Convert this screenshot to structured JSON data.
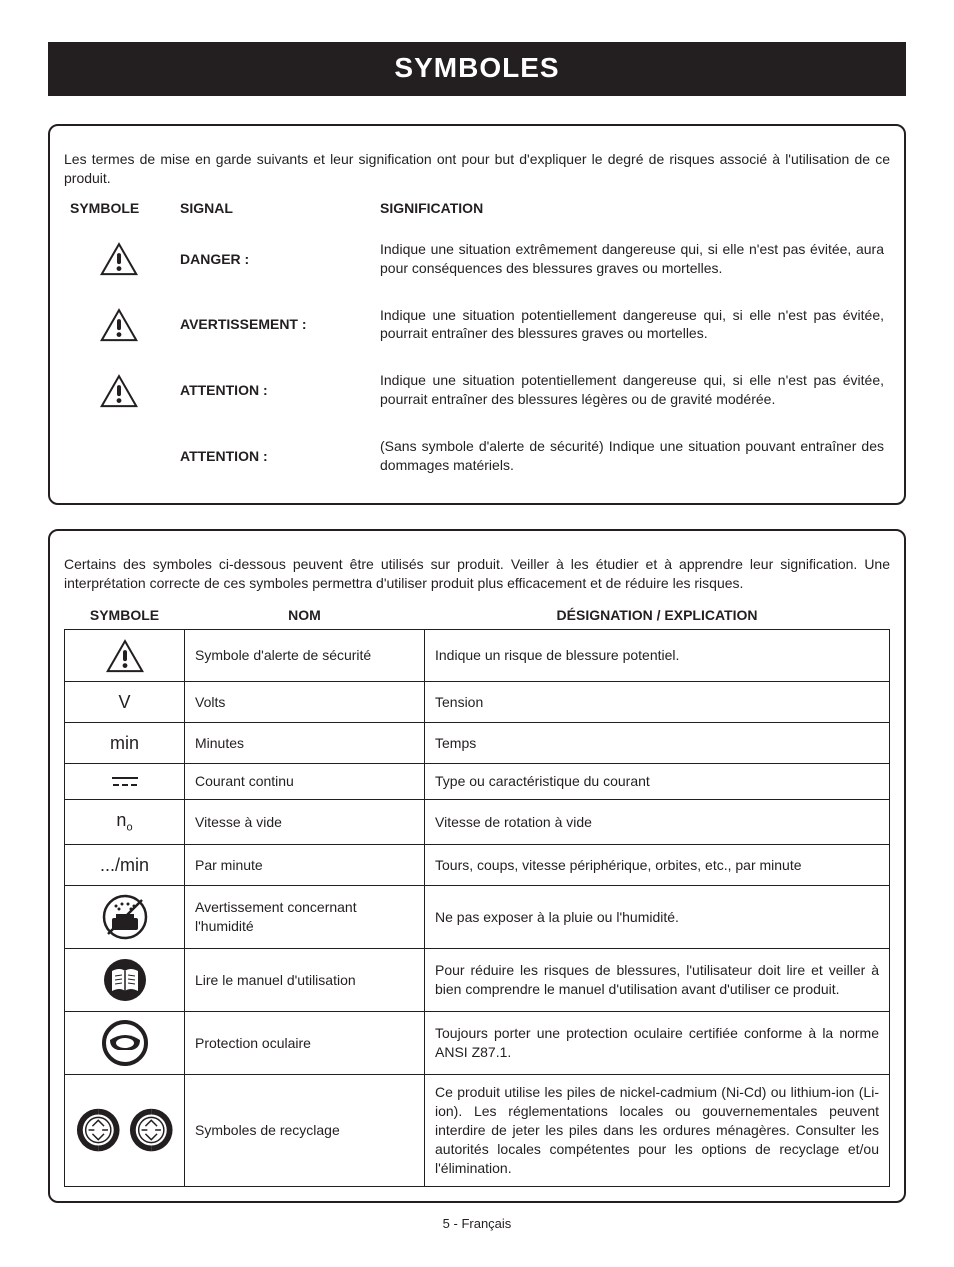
{
  "title": "SYMBOLES",
  "footer": "5 - Français",
  "colors": {
    "text": "#231f20",
    "bg": "#ffffff",
    "titlebar_bg": "#231f20",
    "titlebar_fg": "#ffffff",
    "border": "#231f20"
  },
  "box1": {
    "intro": "Les termes de mise en garde suivants et leur signification ont pour but d'expliquer le degré de risques associé à l'utilisation de ce produit.",
    "headers": {
      "symbole": "SYMBOLE",
      "signal": "SIGNAL",
      "signification": "SIGNIFICATION"
    },
    "rows": [
      {
        "has_icon": true,
        "signal": "DANGER :",
        "desc": "Indique une situation extrêmement dangereuse qui, si elle n'est pas évitée, aura pour conséquences des blessures graves ou mortelles."
      },
      {
        "has_icon": true,
        "signal": "AVERTISSEMENT :",
        "desc": "Indique une situation potentiellement dangereuse qui, si elle n'est pas évitée, pourrait entraîner des blessures graves ou mortelles."
      },
      {
        "has_icon": true,
        "signal": "ATTENTION :",
        "desc": "Indique une situation potentiellement dangereuse qui, si elle n'est pas évitée, pourrait entraîner des blessures légères ou de gravité modérée."
      },
      {
        "has_icon": false,
        "signal": "ATTENTION :",
        "desc": "(Sans symbole d'alerte de sécurité) Indique une situation pouvant entraîner des dommages matériels."
      }
    ]
  },
  "box2": {
    "intro": "Certains des symboles ci-dessous peuvent être utilisés sur produit. Veiller à les étudier et à apprendre leur signification. Une interprétation correcte de ces symboles permettra d'utiliser produit plus efficacement et de réduire les risques.",
    "headers": {
      "symbole": "SYMBOLE",
      "nom": "NOM",
      "designation": "DÉSIGNATION / EXPLICATION"
    },
    "rows": [
      {
        "icon": "alert",
        "nom": "Symbole d'alerte de sécurité",
        "expl": "Indique un risque de blessure potentiel."
      },
      {
        "icon": "text",
        "glyph": "V",
        "nom": "Volts",
        "expl": "Tension"
      },
      {
        "icon": "text",
        "glyph": "min",
        "nom": "Minutes",
        "expl": "Temps"
      },
      {
        "icon": "dc",
        "nom": "Courant continu",
        "expl": "Type ou caractéristique du courant"
      },
      {
        "icon": "no",
        "glyph_main": "n",
        "glyph_sub": "o",
        "nom": "Vitesse à vide",
        "expl": "Vitesse de rotation à vide"
      },
      {
        "icon": "text",
        "glyph": ".../min",
        "nom": "Par minute",
        "expl": "Tours, coups, vitesse périphérique, orbites, etc., par minute"
      },
      {
        "icon": "wet",
        "nom": "Avertissement concernant l'humidité",
        "expl": "Ne pas exposer à la pluie ou l'humidité."
      },
      {
        "icon": "manual",
        "nom": "Lire le manuel d'utilisation",
        "expl": "Pour réduire les risques de blessures, l'utilisateur doit lire et veiller à bien comprendre le manuel d'utilisation avant d'utiliser ce produit."
      },
      {
        "icon": "eye",
        "nom": "Protection oculaire",
        "expl": "Toujours porter une protection oculaire certifiée conforme à la norme ANSI Z87.1."
      },
      {
        "icon": "recycle",
        "nom": "Symboles de recyclage",
        "expl": "Ce produit utilise les piles de nickel-cadmium (Ni-Cd) ou lithium-ion (Li-ion). Les réglementations locales ou gouvernementales peuvent interdire de jeter les piles dans les ordures ménagères. Consulter les autorités locales compétentes pour les options de recyclage et/ou l'élimination."
      }
    ]
  }
}
